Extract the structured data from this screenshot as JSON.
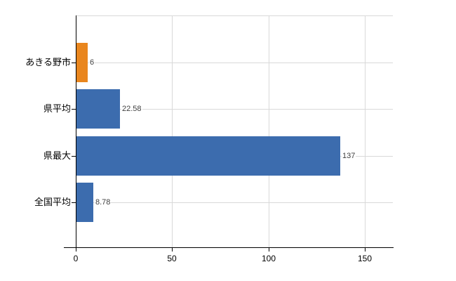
{
  "chart_data": {
    "type": "bar",
    "orientation": "horizontal",
    "title": "",
    "xlabel": "",
    "ylabel": "",
    "categories": [
      "あきる野市",
      "県平均",
      "県最大",
      "全国平均"
    ],
    "values": [
      6,
      22.58,
      137,
      8.78
    ],
    "value_labels": [
      "6",
      "22.58",
      "137",
      "8.78"
    ],
    "bar_colors": [
      "#E9861E",
      "#3C6CAE",
      "#3C6CAE",
      "#3C6CAE"
    ],
    "xlim": [
      0,
      150
    ],
    "x_ticks": [
      0,
      50,
      100,
      150
    ],
    "x_tick_labels": [
      "0",
      "50",
      "100",
      "150"
    ],
    "grid": "on",
    "legend": "none"
  },
  "colors": {
    "bar_blue": "#3C6CAE",
    "bar_orange": "#E9861E",
    "gridline": "#D9D9D9",
    "axis": "#000000",
    "value_label_text": "#3F3F3F",
    "background": "#FFFFFF"
  }
}
